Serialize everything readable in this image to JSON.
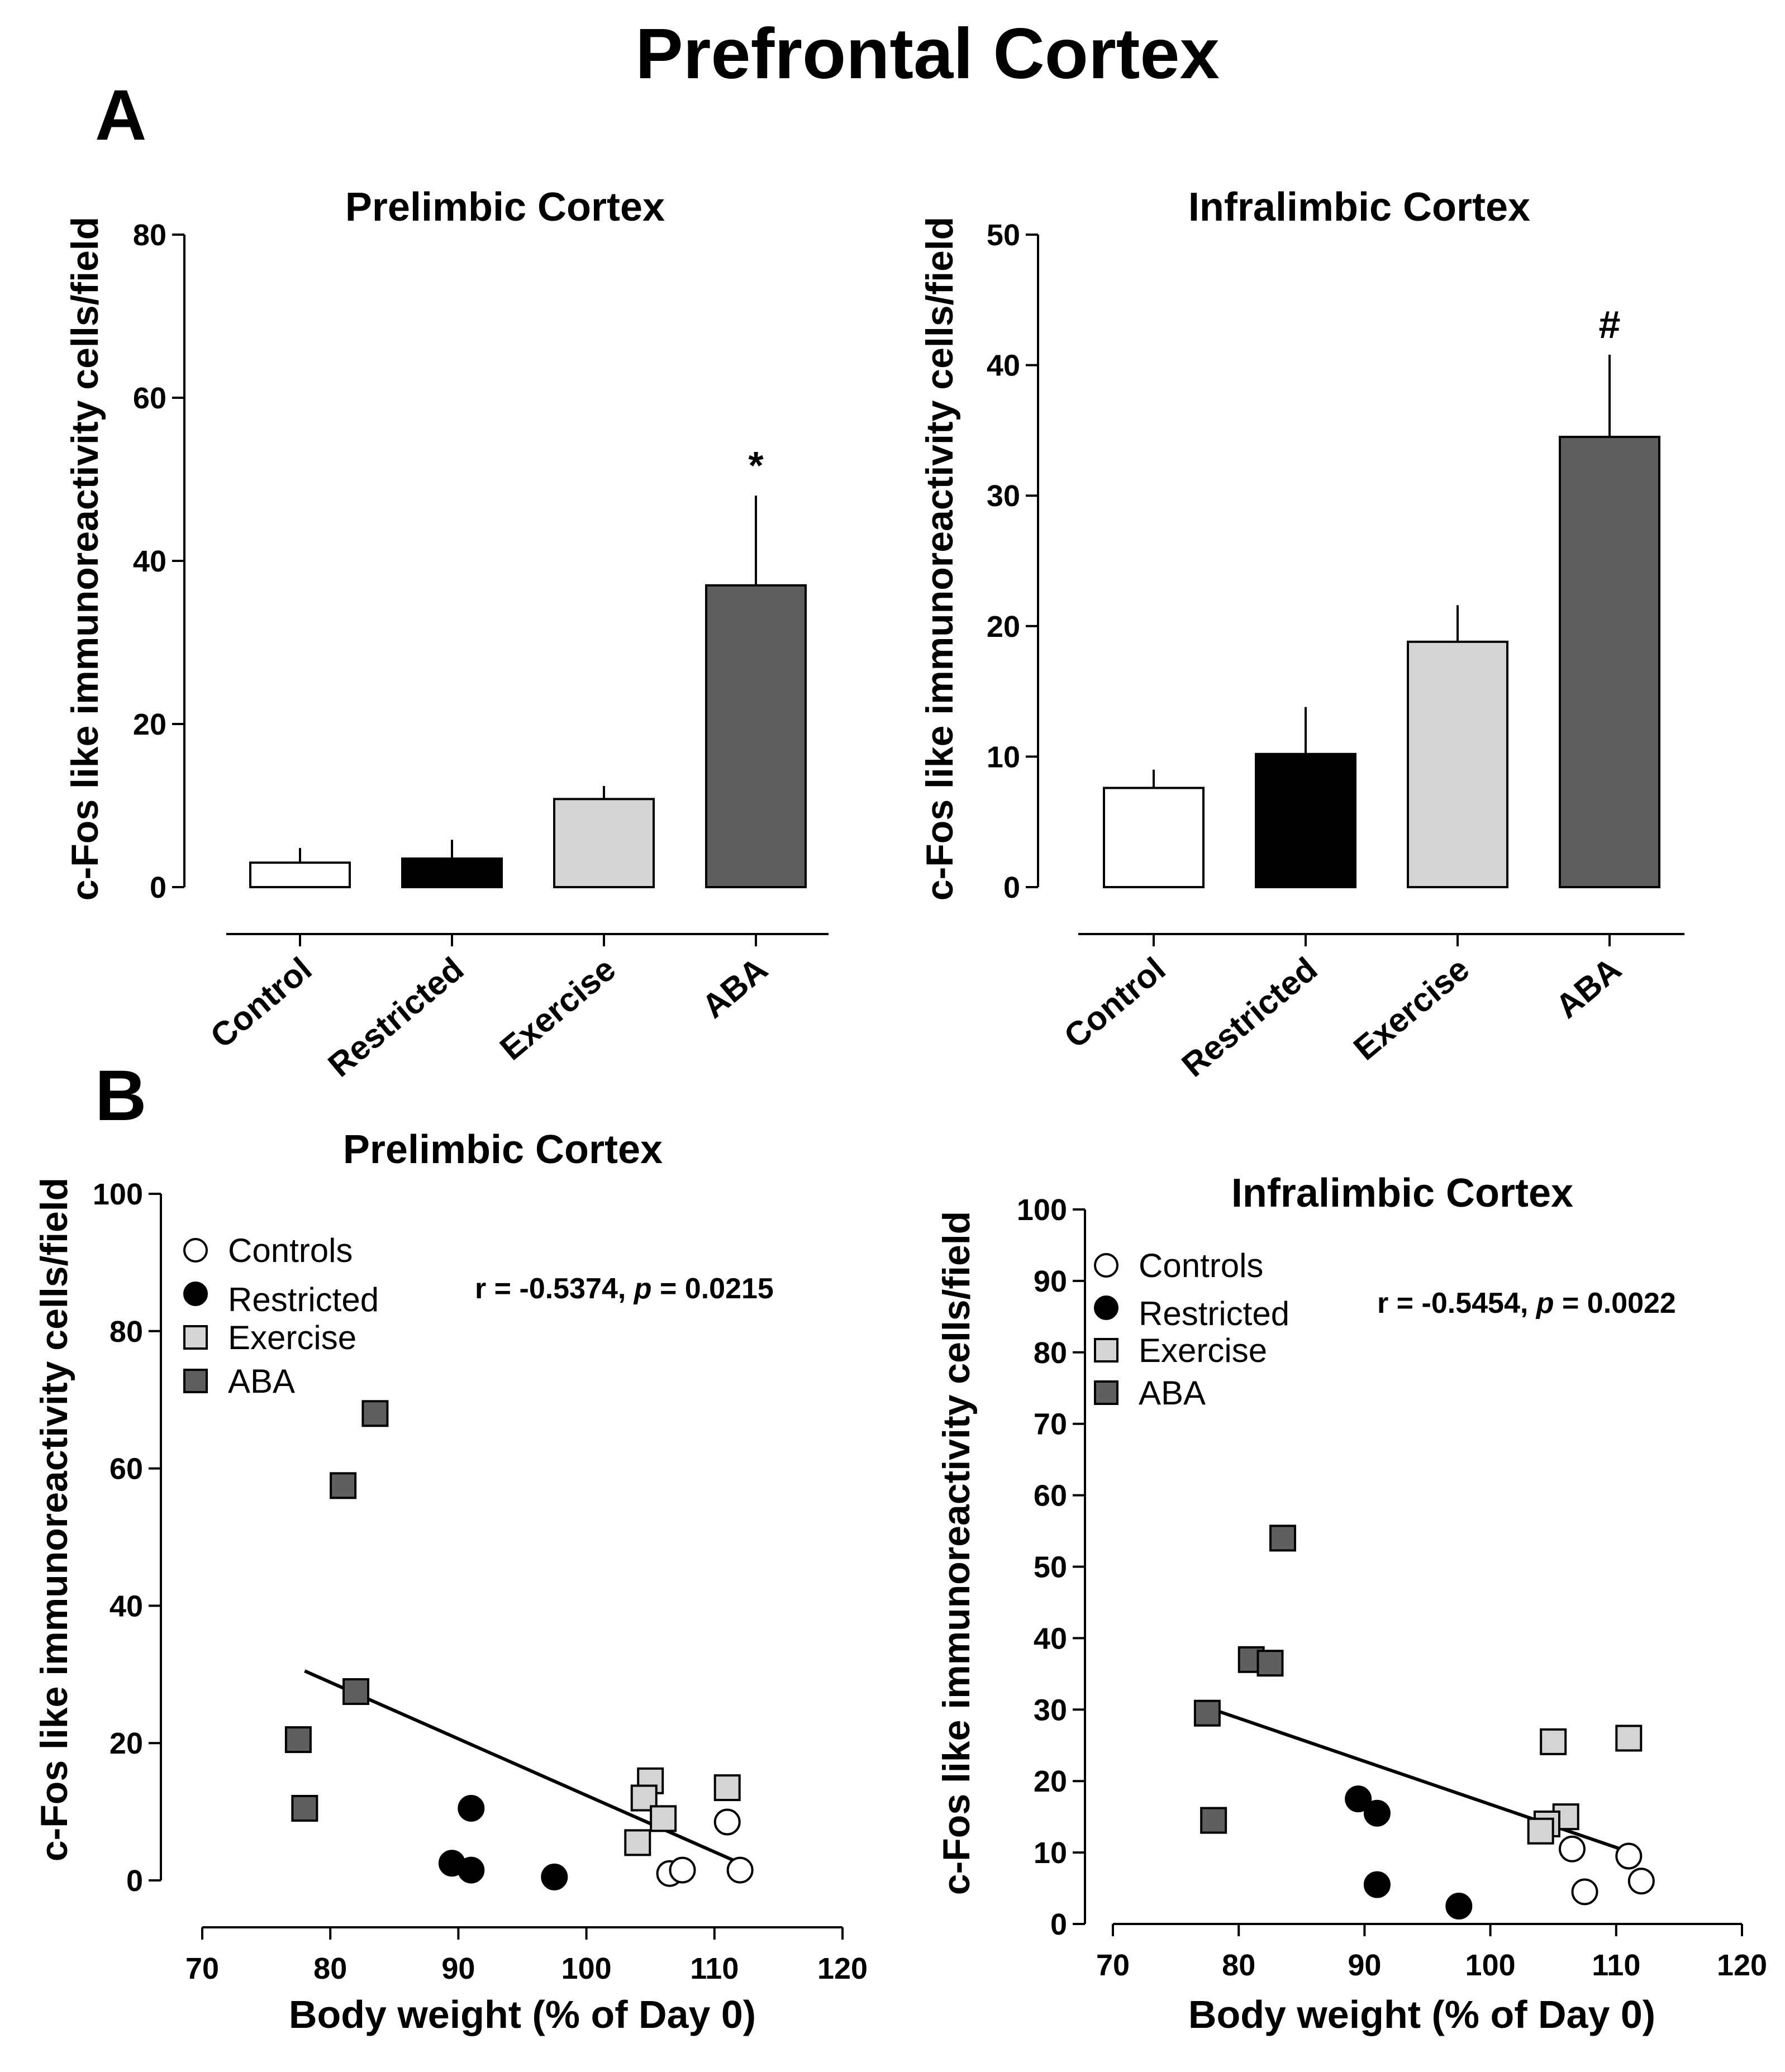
{
  "figure_title": "Prefrontal Cortex",
  "panel_a_label": "A",
  "panel_b_label": "B",
  "colors": {
    "Control": "#ffffff",
    "Controls": "#ffffff",
    "Restricted": "#000000",
    "Exercise": "#d4d4d4",
    "ABA": "#5f5f5f"
  },
  "chart_data": [
    {
      "type": "bar",
      "title": "Prelimbic Cortex",
      "ylabel": "c-Fos like immunoreactivity cells/field",
      "xlabel": "",
      "categories": [
        "Control",
        "Restricted",
        "Exercise",
        "ABA"
      ],
      "values": [
        3,
        3.5,
        10.8,
        37
      ],
      "errors": [
        1.8,
        2.3,
        1.6,
        11
      ],
      "significance": [
        "",
        "",
        "",
        "*"
      ],
      "ylim": [
        0,
        80
      ],
      "yticks": [
        0,
        20,
        40,
        60,
        80
      ]
    },
    {
      "type": "bar",
      "title": "Infralimbic Cortex",
      "ylabel": "c-Fos like immunoreactivity cells/field",
      "xlabel": "",
      "categories": [
        "Control",
        "Restricted",
        "Exercise",
        "ABA"
      ],
      "values": [
        7.6,
        10.2,
        18.8,
        34.5
      ],
      "errors": [
        1.4,
        3.6,
        2.8,
        6.3
      ],
      "significance": [
        "",
        "",
        "",
        "#"
      ],
      "ylim": [
        0,
        50
      ],
      "yticks": [
        0,
        10,
        20,
        30,
        40,
        50
      ]
    },
    {
      "type": "scatter",
      "title": "Prelimbic Cortex",
      "xlabel": "Body weight (% of Day 0)",
      "ylabel": "c-Fos like immunoreactivity cells/field",
      "xlim": [
        70,
        120
      ],
      "ylim": [
        0,
        100
      ],
      "xticks": [
        70,
        80,
        90,
        100,
        110,
        120
      ],
      "yticks": [
        0,
        20,
        40,
        60,
        80,
        100
      ],
      "annotation": {
        "r": "r = -0.5374, ",
        "p_label": "p",
        "p_value": " = 0.0215"
      },
      "legend": [
        "Controls",
        "Restricted",
        "Exercise",
        "ABA"
      ],
      "series": [
        {
          "name": "Controls",
          "marker": "circle",
          "x": [
            111,
            112,
            106.5,
            107.5
          ],
          "y": [
            8.5,
            1.5,
            1,
            1.5
          ]
        },
        {
          "name": "Restricted",
          "marker": "circle",
          "x": [
            91,
            89.5,
            91,
            97.5
          ],
          "y": [
            10.5,
            2.5,
            1.5,
            0.5
          ]
        },
        {
          "name": "Exercise",
          "marker": "square",
          "x": [
            105,
            104.5,
            106,
            104,
            111
          ],
          "y": [
            14.5,
            12,
            9,
            5.5,
            13.5
          ]
        },
        {
          "name": "ABA",
          "marker": "square",
          "x": [
            83.5,
            81,
            82,
            77.5,
            78
          ],
          "y": [
            68,
            57.5,
            27.5,
            20.5,
            10.5
          ]
        }
      ],
      "regression": {
        "x": [
          78,
          112
        ],
        "y": [
          30.5,
          2.5
        ]
      }
    },
    {
      "type": "scatter",
      "title": "Infralimbic Cortex",
      "xlabel": "Body weight (% of Day 0)",
      "ylabel": "c-Fos like immunoreactivity cells/field",
      "xlim": [
        70,
        120
      ],
      "ylim": [
        0,
        100
      ],
      "xticks": [
        70,
        80,
        90,
        100,
        110,
        120
      ],
      "yticks": [
        0,
        10,
        20,
        30,
        40,
        50,
        60,
        70,
        80,
        90,
        100
      ],
      "annotation": {
        "r": "r = -0.5454, ",
        "p_label": "p",
        "p_value": " = 0.0022"
      },
      "legend": [
        "Controls",
        "Restricted",
        "Exercise",
        "ABA"
      ],
      "series": [
        {
          "name": "Controls",
          "marker": "circle",
          "x": [
            111,
            106.5,
            112,
            107.5
          ],
          "y": [
            9.5,
            10.5,
            6,
            4.5
          ]
        },
        {
          "name": "Restricted",
          "marker": "circle",
          "x": [
            89.5,
            91,
            91,
            97.5
          ],
          "y": [
            17.5,
            15.5,
            5.5,
            2.5
          ]
        },
        {
          "name": "Exercise",
          "marker": "square",
          "x": [
            105,
            111,
            106,
            104.5,
            104
          ],
          "y": [
            25.5,
            26,
            15,
            14,
            13
          ]
        },
        {
          "name": "ABA",
          "marker": "square",
          "x": [
            83.5,
            81,
            82.5,
            77.5,
            78
          ],
          "y": [
            54,
            37,
            36.5,
            29.5,
            14.5
          ]
        }
      ],
      "regression": {
        "x": [
          78,
          112
        ],
        "y": [
          30,
          9.5
        ]
      }
    }
  ]
}
